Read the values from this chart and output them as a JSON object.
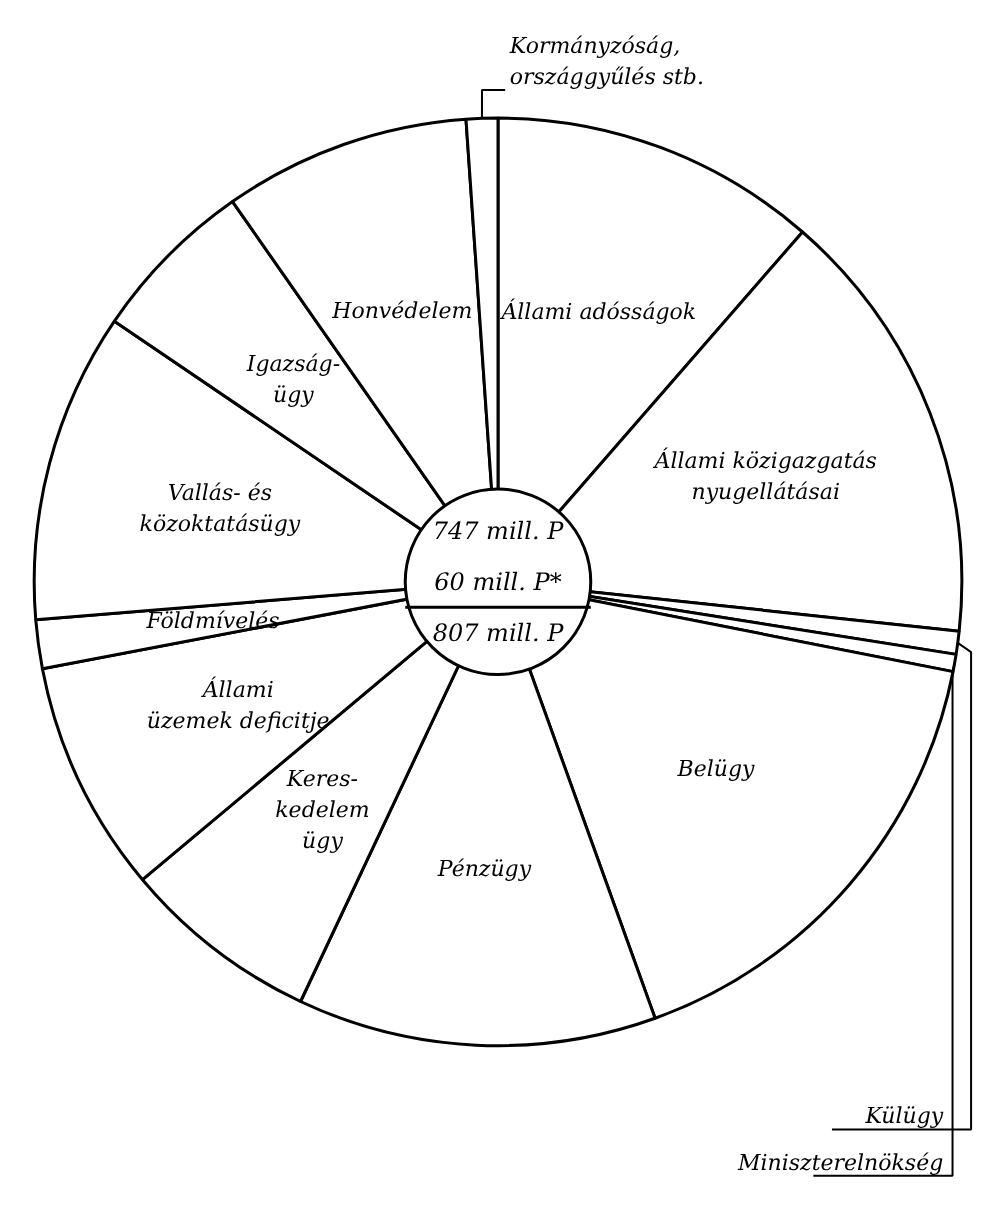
{
  "chart_data": {
    "type": "pie",
    "categories": [
      "Állami adósságok",
      "Állami közigazgatás\nnyugellátásai",
      "Külügy",
      "Miniszterelnökség",
      "Belügy",
      "Pénzügy",
      "Keres-\nkedelem\nügy",
      "Állami\nüzemek deficitje",
      "Földmívelés",
      "Vallás- és\nközoktatásügy",
      "Igazság-\nügy",
      "Honvédelem",
      "Kormányzóság,\nországgyűlés stb."
    ],
    "values": [
      11.4,
      15.3,
      0.8,
      0.6,
      16.4,
      12.5,
      6.9,
      8.1,
      1.7,
      10.8,
      5.8,
      8.6,
      1.1
    ],
    "colors": [
      "#ffffff",
      "#ffffff",
      "#ffffff",
      "#ffffff",
      "#ffffff",
      "#ffffff",
      "#ffffff",
      "#ffffff",
      "#ffffff",
      "#ffffff",
      "#ffffff",
      "#ffffff",
      "#ffffff"
    ],
    "annotations": [
      "747 mill. P",
      "60 mill. P*",
      "807 mill. P"
    ]
  }
}
